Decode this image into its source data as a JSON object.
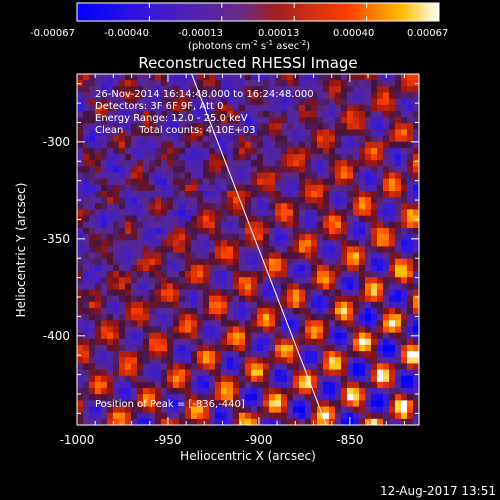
{
  "chart_data": {
    "type": "heatmap",
    "title": "Reconstructed RHESSI Image",
    "xlabel": "Heliocentric X (arcsec)",
    "ylabel": "Heliocentric Y (arcsec)",
    "xlim": [
      -1000,
      -812
    ],
    "ylim": [
      -446,
      -265
    ],
    "x_ticks": [
      -1000,
      -950,
      -900,
      -850
    ],
    "y_ticks": [
      -300,
      -350,
      -400
    ],
    "colorbar": {
      "ticks": [
        "-0.00067",
        "-0.00040",
        "-0.00013",
        "0.00013",
        "0.00040",
        "0.00067"
      ],
      "range": [
        -0.00067,
        0.00067
      ],
      "units_prefix": "(photons cm",
      "units_exp1": "-2",
      "units_mid": " s",
      "units_exp2": "-1",
      "units_mid2": " asec",
      "units_exp3": "-2",
      "units_suffix": ")"
    },
    "info_lines": [
      "26-Nov-2014 16:14:48.000 to 16:24:48.000",
      "Detectors: 3F 6F 9F, Att 0",
      "Energy Range: 12.0 - 25.0 keV",
      "Clean     Total counts: 4.10E+03"
    ],
    "peak_label": "Position of Peak = [-836,-440]",
    "limb_line": {
      "x": [
        -937,
        -863
      ],
      "y": [
        -265,
        -446
      ]
    },
    "colormap": "blue-purple-red-yellow-white"
  },
  "footer": {
    "timestamp": "12-Aug-2017 13:51"
  }
}
